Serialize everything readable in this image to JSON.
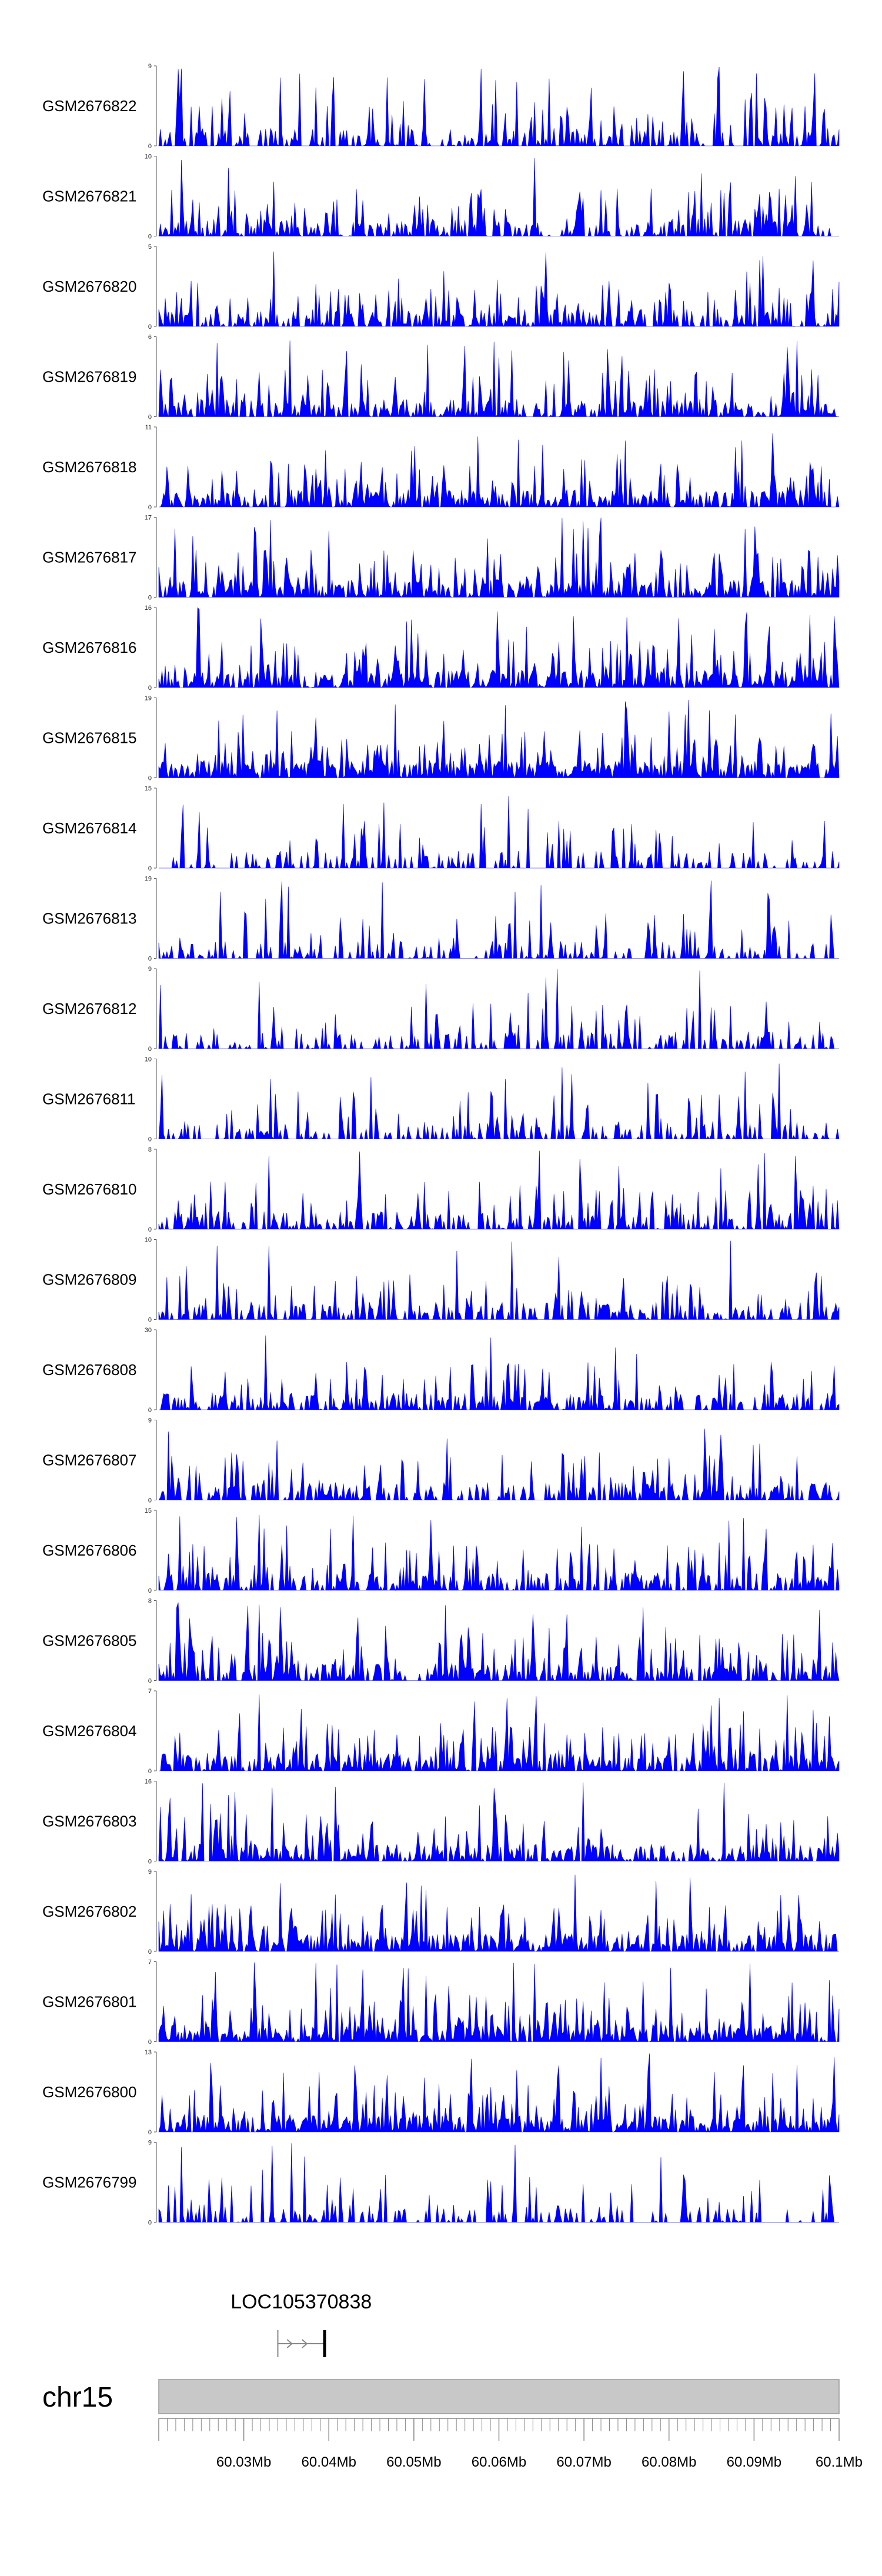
{
  "chart_data": {
    "type": "area",
    "title": "",
    "xlabel": "",
    "ylabel": "",
    "xlim": [
      60.02,
      60.1
    ],
    "x_unit": "Mb",
    "color": "#0000FF",
    "tracks": [
      {
        "name": "GSM2676822",
        "ymax": "9",
        "ylim": [
          0,
          9
        ]
      },
      {
        "name": "GSM2676821",
        "ymax": "10",
        "ylim": [
          0,
          10
        ]
      },
      {
        "name": "GSM2676820",
        "ymax": "5",
        "ylim": [
          0,
          5
        ]
      },
      {
        "name": "GSM2676819",
        "ymax": "6",
        "ylim": [
          0,
          6
        ]
      },
      {
        "name": "GSM2676818",
        "ymax": "11",
        "ylim": [
          0,
          11
        ]
      },
      {
        "name": "GSM2676817",
        "ymax": "17",
        "ylim": [
          0,
          17
        ]
      },
      {
        "name": "GSM2676816",
        "ymax": "16",
        "ylim": [
          0,
          16
        ]
      },
      {
        "name": "GSM2676815",
        "ymax": "19",
        "ylim": [
          0,
          19
        ]
      },
      {
        "name": "GSM2676814",
        "ymax": "15",
        "ylim": [
          0,
          15
        ]
      },
      {
        "name": "GSM2676813",
        "ymax": "19",
        "ylim": [
          0,
          19
        ]
      },
      {
        "name": "GSM2676812",
        "ymax": "9",
        "ylim": [
          0,
          9
        ]
      },
      {
        "name": "GSM2676811",
        "ymax": "10",
        "ylim": [
          0,
          10
        ]
      },
      {
        "name": "GSM2676810",
        "ymax": "8",
        "ylim": [
          0,
          8
        ]
      },
      {
        "name": "GSM2676809",
        "ymax": "10",
        "ylim": [
          0,
          10
        ]
      },
      {
        "name": "GSM2676808",
        "ymax": "30",
        "ylim": [
          0,
          30
        ]
      },
      {
        "name": "GSM2676807",
        "ymax": "9",
        "ylim": [
          0,
          9
        ]
      },
      {
        "name": "GSM2676806",
        "ymax": "15",
        "ylim": [
          0,
          15
        ]
      },
      {
        "name": "GSM2676805",
        "ymax": "8",
        "ylim": [
          0,
          8
        ]
      },
      {
        "name": "GSM2676804",
        "ymax": "7",
        "ylim": [
          0,
          7
        ]
      },
      {
        "name": "GSM2676803",
        "ymax": "16",
        "ylim": [
          0,
          16
        ]
      },
      {
        "name": "GSM2676802",
        "ymax": "9",
        "ylim": [
          0,
          9
        ]
      },
      {
        "name": "GSM2676801",
        "ymax": "7",
        "ylim": [
          0,
          7
        ]
      },
      {
        "name": "GSM2676800",
        "ymax": "13",
        "ylim": [
          0,
          13
        ]
      },
      {
        "name": "GSM2676799",
        "ymax": "9",
        "ylim": [
          0,
          9
        ]
      }
    ],
    "ymin_label": "0",
    "gene": {
      "name": "LOC105370838",
      "start_mb": 60.034,
      "end_mb": 60.0395,
      "strand": "+"
    },
    "chromosome": {
      "name": "chr15"
    },
    "x_ticks": [
      {
        "value": 60.03,
        "label": "60.03Mb"
      },
      {
        "value": 60.04,
        "label": "60.04Mb"
      },
      {
        "value": 60.05,
        "label": "60.05Mb"
      },
      {
        "value": 60.06,
        "label": "60.06Mb"
      },
      {
        "value": 60.07,
        "label": "60.07Mb"
      },
      {
        "value": 60.08,
        "label": "60.08Mb"
      },
      {
        "value": 60.09,
        "label": "60.09Mb"
      },
      {
        "value": 60.1,
        "label": "60.1Mb"
      }
    ]
  }
}
